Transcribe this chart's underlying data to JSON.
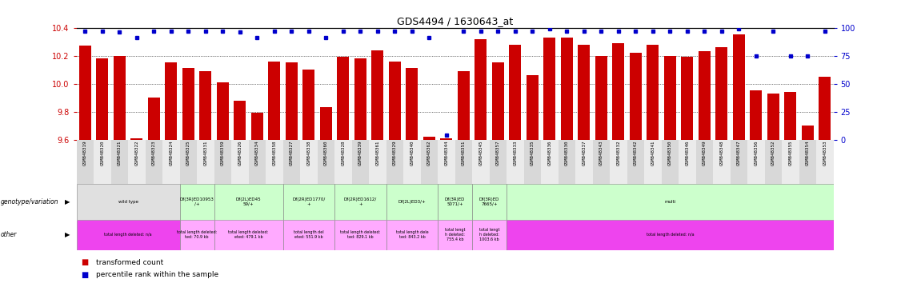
{
  "title": "GDS4494 / 1630643_at",
  "samples": [
    "GSM848319",
    "GSM848320",
    "GSM848321",
    "GSM848322",
    "GSM848323",
    "GSM848324",
    "GSM848325",
    "GSM848331",
    "GSM848359",
    "GSM848326",
    "GSM848334",
    "GSM848358",
    "GSM848327",
    "GSM848338",
    "GSM848360",
    "GSM848328",
    "GSM848339",
    "GSM848361",
    "GSM848329",
    "GSM848340",
    "GSM848362",
    "GSM848344",
    "GSM848351",
    "GSM848345",
    "GSM848357",
    "GSM848333",
    "GSM848335",
    "GSM848336",
    "GSM848330",
    "GSM848337",
    "GSM848343",
    "GSM848332",
    "GSM848342",
    "GSM848341",
    "GSM848350",
    "GSM848346",
    "GSM848349",
    "GSM848348",
    "GSM848347",
    "GSM848356",
    "GSM848352",
    "GSM848355",
    "GSM848354",
    "GSM848353"
  ],
  "bar_values": [
    10.27,
    10.18,
    10.2,
    9.61,
    9.9,
    10.15,
    10.11,
    10.09,
    10.01,
    9.88,
    9.79,
    10.16,
    10.15,
    10.1,
    9.83,
    10.19,
    10.18,
    10.24,
    10.16,
    10.11,
    9.62,
    9.61,
    10.09,
    10.32,
    10.15,
    10.28,
    10.06,
    10.33,
    10.33,
    10.28,
    10.2,
    10.29,
    10.22,
    10.28,
    10.2,
    10.19,
    10.23,
    10.26,
    10.35,
    9.95,
    9.93,
    9.94,
    9.7,
    10.05
  ],
  "percentile_values": [
    97,
    97,
    96,
    91,
    97,
    97,
    97,
    97,
    97,
    96,
    91,
    97,
    97,
    97,
    91,
    97,
    97,
    97,
    97,
    97,
    91,
    4,
    97,
    97,
    97,
    97,
    97,
    99,
    97,
    97,
    97,
    97,
    97,
    97,
    97,
    97,
    97,
    97,
    99,
    75,
    97,
    75,
    75,
    97
  ],
  "ylim_left": [
    9.6,
    10.4
  ],
  "ylim_right": [
    0,
    100
  ],
  "yticks_left": [
    9.6,
    9.8,
    10.0,
    10.2,
    10.4
  ],
  "yticks_right": [
    0,
    25,
    50,
    75,
    100
  ],
  "bar_color": "#cc0000",
  "dot_color": "#0000cc",
  "genotype_groups": [
    {
      "label": "wild type",
      "start": 0,
      "end": 5,
      "color": "#e0e0e0"
    },
    {
      "label": "Df(3R)ED10953\n/+",
      "start": 6,
      "end": 7,
      "color": "#ccffcc"
    },
    {
      "label": "Df(2L)ED45\n59/+",
      "start": 8,
      "end": 11,
      "color": "#ccffcc"
    },
    {
      "label": "Df(2R)ED1770/\n+",
      "start": 12,
      "end": 14,
      "color": "#ccffcc"
    },
    {
      "label": "Df(2R)ED1612/\n+",
      "start": 15,
      "end": 17,
      "color": "#ccffcc"
    },
    {
      "label": "Df(2L)ED3/+",
      "start": 18,
      "end": 20,
      "color": "#ccffcc"
    },
    {
      "label": "Df(3R)ED\n5071/+",
      "start": 21,
      "end": 22,
      "color": "#ccffcc"
    },
    {
      "label": "Df(3R)ED\n7665/+",
      "start": 23,
      "end": 24,
      "color": "#ccffcc"
    },
    {
      "label": "multi",
      "start": 25,
      "end": 43,
      "color": "#ccffcc"
    }
  ],
  "other_groups": [
    {
      "label": "total length deleted: n/a",
      "start": 0,
      "end": 5,
      "color": "#ee44ee"
    },
    {
      "label": "total length deleted:\nted: 70.9 kb",
      "start": 6,
      "end": 7,
      "color": "#ffaaff"
    },
    {
      "label": "total length deleted:\neted: 479.1 kb",
      "start": 8,
      "end": 11,
      "color": "#ffaaff"
    },
    {
      "label": "total length del\neted: 551.9 kb",
      "start": 12,
      "end": 14,
      "color": "#ffaaff"
    },
    {
      "label": "total length deleted:\nted: 829.1 kb",
      "start": 15,
      "end": 17,
      "color": "#ffaaff"
    },
    {
      "label": "total length dele\nted: 843.2 kb",
      "start": 18,
      "end": 20,
      "color": "#ffaaff"
    },
    {
      "label": "total lengt\nh deleted:\n755.4 kb",
      "start": 21,
      "end": 22,
      "color": "#ffaaff"
    },
    {
      "label": "total lengt\nh deleted:\n1003.6 kb",
      "start": 23,
      "end": 24,
      "color": "#ffaaff"
    },
    {
      "label": "total length deleted: n/a",
      "start": 25,
      "end": 43,
      "color": "#ee44ee"
    }
  ],
  "legend_items": [
    {
      "label": "transformed count",
      "color": "#cc0000",
      "marker": "s"
    },
    {
      "label": "percentile rank within the sample",
      "color": "#0000cc",
      "marker": "s"
    }
  ]
}
